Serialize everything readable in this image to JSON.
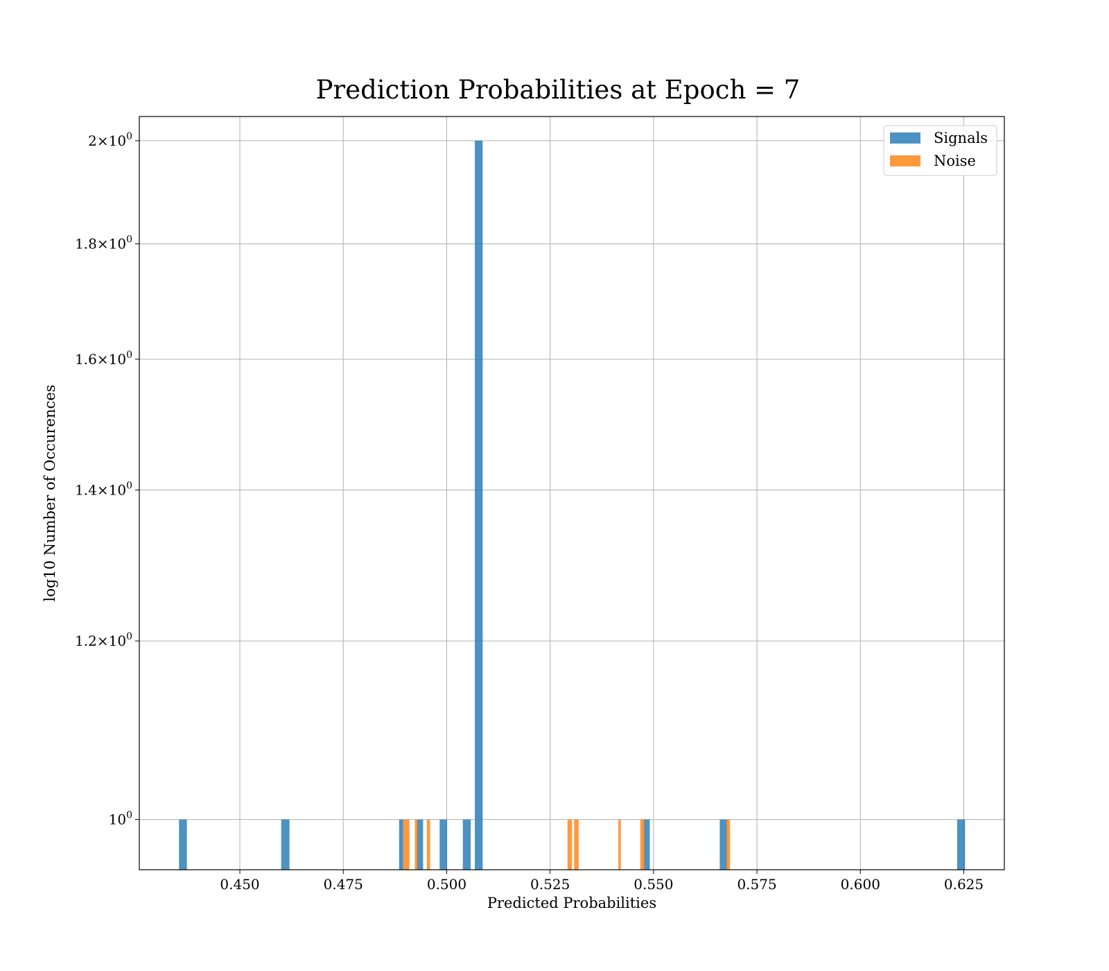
{
  "chart_data": {
    "type": "bar",
    "title": "Prediction Probabilities at Epoch = 7",
    "xlabel": "Predicted Probabilities",
    "ylabel": "log10 Number of Occurences",
    "xlim": [
      0.4257,
      0.6348
    ],
    "ylim": [
      0.95,
      2.05
    ],
    "yscale": "log",
    "grid": true,
    "legend_position": "upper-right",
    "x_ticks": [
      {
        "value": 0.45,
        "label": "0.450"
      },
      {
        "value": 0.475,
        "label": "0.475"
      },
      {
        "value": 0.5,
        "label": "0.500"
      },
      {
        "value": 0.525,
        "label": "0.525"
      },
      {
        "value": 0.55,
        "label": "0.550"
      },
      {
        "value": 0.575,
        "label": "0.575"
      },
      {
        "value": 0.6,
        "label": "0.600"
      },
      {
        "value": 0.625,
        "label": "0.625"
      }
    ],
    "y_ticks": [
      {
        "value": 1.0,
        "mantissa": "",
        "exp": "0",
        "label": "10^0"
      },
      {
        "value": 1.2,
        "mantissa": "1.2",
        "exp": "0",
        "label": "1.2×10^0"
      },
      {
        "value": 1.4,
        "mantissa": "1.4",
        "exp": "0",
        "label": "1.4×10^0"
      },
      {
        "value": 1.6,
        "mantissa": "1.6",
        "exp": "0",
        "label": "1.6×10^0"
      },
      {
        "value": 1.8,
        "mantissa": "1.8",
        "exp": "0",
        "label": "1.8×10^0"
      },
      {
        "value": 2.0,
        "mantissa": "2",
        "exp": "0",
        "label": "2×10^0"
      }
    ],
    "series": [
      {
        "name": "Signals",
        "color": "#1f77b4",
        "bars": [
          {
            "x0": 0.4353,
            "x1": 0.4372,
            "value": 1
          },
          {
            "x0": 0.46,
            "x1": 0.462,
            "value": 1
          },
          {
            "x0": 0.4885,
            "x1": 0.4895,
            "value": 1
          },
          {
            "x0": 0.4928,
            "x1": 0.4943,
            "value": 1
          },
          {
            "x0": 0.4983,
            "x1": 0.5001,
            "value": 1
          },
          {
            "x0": 0.5039,
            "x1": 0.5058,
            "value": 1
          },
          {
            "x0": 0.5068,
            "x1": 0.5087,
            "value": 2
          },
          {
            "x0": 0.5476,
            "x1": 0.5491,
            "value": 1
          },
          {
            "x0": 0.566,
            "x1": 0.5678,
            "value": 1
          },
          {
            "x0": 0.6234,
            "x1": 0.6253,
            "value": 1
          }
        ]
      },
      {
        "name": "Noise",
        "color": "#ff7f0e",
        "bars": [
          {
            "x0": 0.4895,
            "x1": 0.491,
            "value": 1
          },
          {
            "x0": 0.4923,
            "x1": 0.493,
            "value": 1
          },
          {
            "x0": 0.4952,
            "x1": 0.496,
            "value": 1
          },
          {
            "x0": 0.5292,
            "x1": 0.5303,
            "value": 1
          },
          {
            "x0": 0.5308,
            "x1": 0.5319,
            "value": 1
          },
          {
            "x0": 0.5415,
            "x1": 0.5421,
            "value": 1
          },
          {
            "x0": 0.5468,
            "x1": 0.5478,
            "value": 1
          },
          {
            "x0": 0.5676,
            "x1": 0.5685,
            "value": 1
          }
        ]
      }
    ]
  }
}
